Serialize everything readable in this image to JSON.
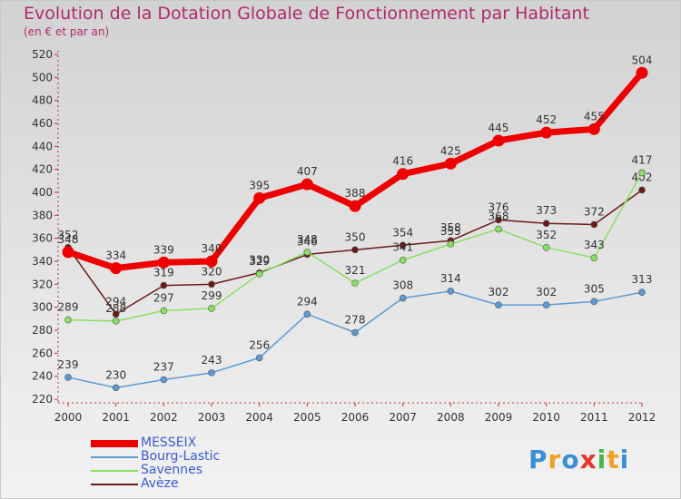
{
  "title": "Evolution de la Dotation Globale de Fonctionnement par Habitant",
  "subtitle": "(en € et par an)",
  "logo": "Proxiti",
  "chart_data": {
    "type": "line",
    "x": [
      "2000",
      "2001",
      "2002",
      "2003",
      "2004",
      "2005",
      "2006",
      "2007",
      "2008",
      "2009",
      "2010",
      "2011",
      "2012"
    ],
    "ylim": [
      220,
      520
    ],
    "yticks": [
      220,
      240,
      260,
      280,
      300,
      320,
      340,
      360,
      380,
      400,
      420,
      440,
      460,
      480,
      500,
      520
    ],
    "grid": false,
    "legend_position": "bottom-left",
    "series": [
      {
        "name": "MESSEIX",
        "color": "#ee0000",
        "values": [
          348,
          334,
          339,
          340,
          395,
          407,
          388,
          416,
          425,
          445,
          452,
          455,
          504
        ]
      },
      {
        "name": "Bourg-Lastic",
        "color": "#5a9bd4",
        "values": [
          239,
          230,
          237,
          243,
          256,
          294,
          278,
          308,
          314,
          302,
          302,
          305,
          313
        ]
      },
      {
        "name": "Savennes",
        "color": "#88e060",
        "values": [
          289,
          288,
          297,
          299,
          329,
          348,
          321,
          341,
          355,
          368,
          352,
          343,
          417
        ]
      },
      {
        "name": "Avèze",
        "color": "#6b1a1a",
        "values": [
          352,
          294,
          319,
          320,
          330,
          346,
          350,
          354,
          358,
          376,
          373,
          372,
          402
        ]
      }
    ]
  }
}
